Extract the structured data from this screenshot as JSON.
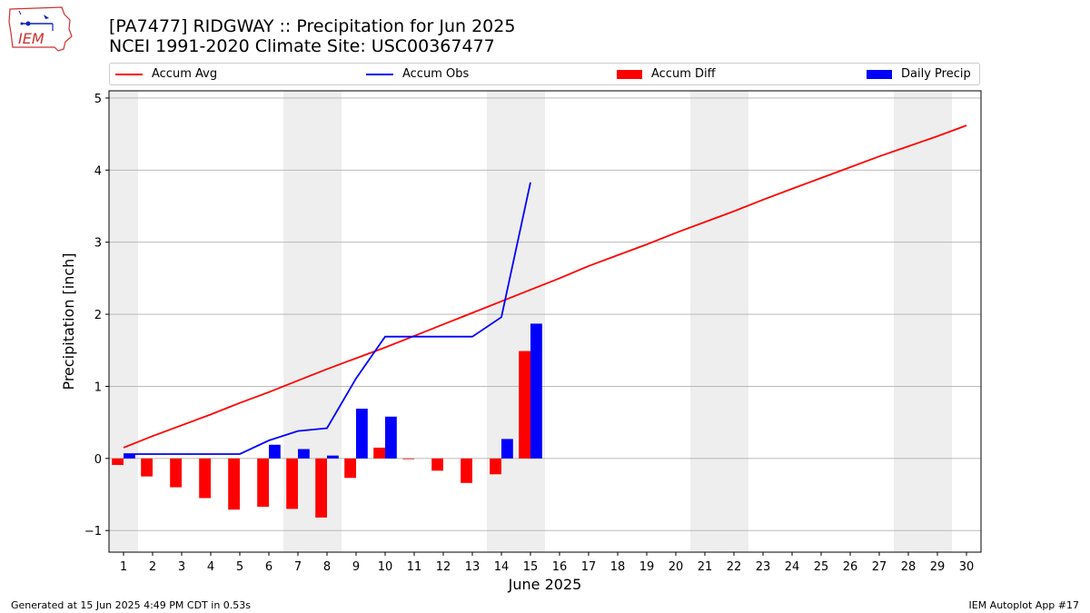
{
  "header": {
    "title_line1": "[PA7477] RIDGWAY :: Precipitation for Jun 2025",
    "title_line2": "NCEI 1991-2020 Climate Site: USC00367477"
  },
  "logo": {
    "text": "IEM",
    "icon": "iowa-state-outline-weather-icon"
  },
  "footer": {
    "left": "Generated at 15 Jun 2025 4:49 PM CDT in 0.53s",
    "right": "IEM Autoplot App #17"
  },
  "colors": {
    "avg": "#ff0000",
    "obs": "#0000ff",
    "diff": "#ff0000",
    "daily": "#0000ff",
    "weekend": "#eeeeee",
    "grid": "#b0b0b0"
  },
  "chart_data": {
    "type": "bar",
    "xlabel": "June 2025",
    "ylabel": "Precipitation [inch]",
    "xlim": [
      0.5,
      30.5
    ],
    "ylim": [
      -1.3,
      5.1
    ],
    "yticks": [
      -1,
      0,
      1,
      2,
      3,
      4,
      5
    ],
    "ytick_labels": [
      "−1",
      "0",
      "1",
      "2",
      "3",
      "4",
      "5"
    ],
    "days": [
      1,
      2,
      3,
      4,
      5,
      6,
      7,
      8,
      9,
      10,
      11,
      12,
      13,
      14,
      15,
      16,
      17,
      18,
      19,
      20,
      21,
      22,
      23,
      24,
      25,
      26,
      27,
      28,
      29,
      30
    ],
    "weekend_days": [
      1,
      7,
      8,
      14,
      15,
      21,
      22,
      28,
      29
    ],
    "grid": "horizontal",
    "legend_position": "top",
    "series": [
      {
        "name": "Accum Avg",
        "kind": "line",
        "x": [
          1,
          2,
          3,
          4,
          5,
          6,
          7,
          8,
          9,
          10,
          11,
          12,
          13,
          14,
          15,
          16,
          17,
          18,
          19,
          20,
          21,
          22,
          23,
          24,
          25,
          26,
          27,
          28,
          29,
          30
        ],
        "values": [
          0.15,
          0.31,
          0.46,
          0.61,
          0.77,
          0.92,
          1.08,
          1.24,
          1.39,
          1.54,
          1.7,
          1.86,
          2.02,
          2.18,
          2.34,
          2.5,
          2.67,
          2.82,
          2.97,
          3.13,
          3.28,
          3.43,
          3.59,
          3.74,
          3.89,
          4.04,
          4.19,
          4.33,
          4.47,
          4.62
        ]
      },
      {
        "name": "Accum Obs",
        "kind": "line",
        "x": [
          1,
          2,
          3,
          4,
          5,
          6,
          7,
          8,
          9,
          10,
          11,
          12,
          13,
          14,
          15
        ],
        "values": [
          0.06,
          0.06,
          0.06,
          0.06,
          0.06,
          0.25,
          0.38,
          0.42,
          1.11,
          1.69,
          1.69,
          1.69,
          1.69,
          1.96,
          3.83
        ]
      },
      {
        "name": "Accum Diff",
        "kind": "bar",
        "x": [
          1,
          2,
          3,
          4,
          5,
          6,
          7,
          8,
          9,
          10,
          11,
          12,
          13,
          14,
          15
        ],
        "values": [
          -0.09,
          -0.25,
          -0.4,
          -0.55,
          -0.71,
          -0.67,
          -0.7,
          -0.82,
          -0.27,
          0.15,
          -0.01,
          -0.17,
          -0.34,
          -0.22,
          1.49
        ]
      },
      {
        "name": "Daily Precip",
        "kind": "bar",
        "x": [
          1,
          2,
          3,
          4,
          5,
          6,
          7,
          8,
          9,
          10,
          11,
          12,
          13,
          14,
          15
        ],
        "values": [
          0.06,
          0,
          0,
          0,
          0,
          0.19,
          0.13,
          0.04,
          0.69,
          0.58,
          0,
          0,
          0,
          0.27,
          1.87
        ]
      }
    ]
  }
}
